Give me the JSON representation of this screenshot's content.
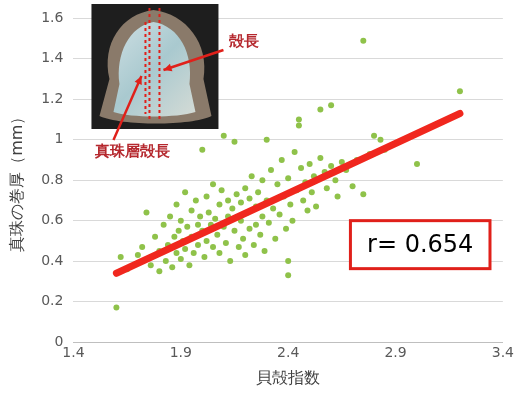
{
  "chart_data": {
    "type": "scatter",
    "x_label": "貝殻指数",
    "y_label": "真珠の巻厚（mm）",
    "xlim": [
      1.4,
      3.4
    ],
    "xticks": [
      1.4,
      1.9,
      2.4,
      2.9,
      3.4
    ],
    "ylim": [
      0,
      1.6
    ],
    "yticks": [
      0,
      0.2,
      0.4,
      0.6,
      0.8,
      1,
      1.2,
      1.4,
      1.6
    ],
    "grid": "y",
    "annotations": [
      "r= 0.654",
      "殻長",
      "真珠層殻長"
    ],
    "series": [
      {
        "type": "scatter",
        "color": "#8fc24a",
        "marker": "circle",
        "x": [
          1.6,
          1.62,
          1.65,
          1.7,
          1.72,
          1.74,
          1.76,
          1.78,
          1.8,
          1.8,
          1.82,
          1.83,
          1.84,
          1.85,
          1.86,
          1.87,
          1.88,
          1.88,
          1.89,
          1.9,
          1.9,
          1.91,
          1.92,
          1.92,
          1.93,
          1.94,
          1.95,
          1.95,
          1.96,
          1.97,
          1.98,
          1.98,
          1.99,
          2.0,
          2.0,
          2.01,
          2.02,
          2.02,
          2.03,
          2.04,
          2.05,
          2.05,
          2.06,
          2.07,
          2.08,
          2.08,
          2.09,
          2.1,
          2.1,
          2.11,
          2.12,
          2.12,
          2.13,
          2.14,
          2.15,
          2.15,
          2.16,
          2.17,
          2.18,
          2.18,
          2.19,
          2.2,
          2.2,
          2.21,
          2.22,
          2.22,
          2.23,
          2.24,
          2.25,
          2.25,
          2.26,
          2.27,
          2.28,
          2.28,
          2.29,
          2.3,
          2.3,
          2.31,
          2.32,
          2.33,
          2.34,
          2.35,
          2.36,
          2.37,
          2.38,
          2.39,
          2.4,
          2.4,
          2.4,
          2.41,
          2.42,
          2.43,
          2.44,
          2.45,
          2.45,
          2.46,
          2.47,
          2.48,
          2.49,
          2.5,
          2.51,
          2.52,
          2.53,
          2.55,
          2.55,
          2.57,
          2.58,
          2.6,
          2.6,
          2.62,
          2.63,
          2.65,
          2.67,
          2.7,
          2.72,
          2.75,
          2.75,
          2.78,
          2.8,
          2.83,
          2.85,
          3.0,
          3.2
        ],
        "values": [
          0.17,
          0.42,
          0.36,
          0.43,
          0.47,
          0.64,
          0.38,
          0.52,
          0.35,
          0.45,
          0.58,
          0.4,
          0.48,
          0.62,
          0.37,
          0.52,
          0.44,
          0.68,
          0.55,
          0.41,
          0.6,
          0.5,
          0.46,
          0.74,
          0.57,
          0.38,
          0.65,
          0.52,
          0.44,
          0.7,
          0.58,
          0.48,
          0.62,
          0.95,
          0.55,
          0.42,
          0.72,
          0.5,
          0.64,
          0.58,
          0.47,
          0.78,
          0.61,
          0.53,
          0.68,
          0.44,
          0.75,
          1.02,
          0.57,
          0.49,
          0.7,
          0.62,
          0.4,
          0.66,
          0.99,
          0.55,
          0.73,
          0.47,
          0.69,
          0.6,
          0.51,
          0.76,
          0.43,
          0.64,
          0.71,
          0.56,
          0.82,
          0.48,
          0.67,
          0.58,
          0.74,
          0.53,
          0.8,
          0.62,
          0.45,
          1.0,
          0.7,
          0.59,
          0.85,
          0.66,
          0.51,
          0.78,
          0.63,
          0.9,
          0.72,
          0.56,
          0.33,
          0.4,
          0.81,
          0.68,
          0.6,
          0.94,
          0.75,
          1.1,
          1.07,
          0.86,
          0.7,
          0.79,
          0.65,
          0.88,
          0.74,
          0.82,
          0.67,
          1.15,
          0.91,
          0.84,
          0.76,
          1.17,
          0.87,
          0.8,
          0.72,
          0.89,
          0.85,
          0.77,
          0.9,
          1.49,
          0.73,
          0.93,
          1.02,
          1.0,
          0.95,
          0.88,
          1.24
        ]
      },
      {
        "type": "line",
        "color": "#f0271e",
        "line_style": "solid",
        "x": [
          1.6,
          3.2
        ],
        "values": [
          0.34,
          1.13
        ]
      }
    ]
  }
}
